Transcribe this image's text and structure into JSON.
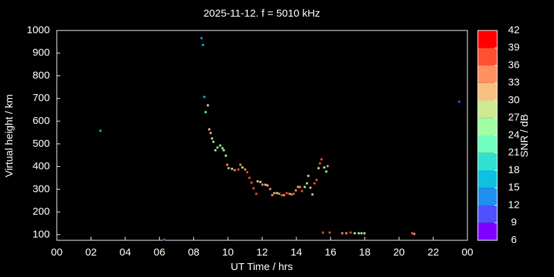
{
  "chart_data": {
    "type": "scatter",
    "title": "2025-11-12. f = 5010 kHz",
    "x_label": "UT Time / hrs",
    "y_label": "Virtual height / km",
    "xlim": [
      0,
      24
    ],
    "xticks": [
      {
        "value": 0,
        "label": "00"
      },
      {
        "value": 2,
        "label": "02"
      },
      {
        "value": 4,
        "label": "04"
      },
      {
        "value": 6,
        "label": "06"
      },
      {
        "value": 8,
        "label": "08"
      },
      10,
      12,
      14,
      16,
      18,
      20,
      22,
      {
        "value": 24,
        "label": "00"
      }
    ],
    "ylim": [
      75,
      1000
    ],
    "yticks": [
      100,
      200,
      300,
      400,
      500,
      600,
      700,
      800,
      900,
      1000
    ],
    "colorbar": {
      "label": "SNR / dB",
      "lim": [
        6,
        42
      ],
      "ticks": [
        6,
        9,
        12,
        15,
        18,
        21,
        24,
        27,
        30,
        33,
        36,
        39,
        42
      ],
      "colors": [
        "#8000ff",
        "#5050ff",
        "#2090f0",
        "#10c0e0",
        "#30e0d0",
        "#70ffc0",
        "#a0ffa0",
        "#d0e890",
        "#f8c080",
        "#ff9060",
        "#ff5030",
        "#ff0000"
      ]
    },
    "x": [
      6.28,
      8.46,
      8.54,
      8.62,
      8.83,
      8.7,
      8.91,
      8.99,
      9.07,
      9.15,
      9.27,
      9.39,
      9.55,
      9.68,
      9.76,
      9.88,
      9.96,
      10.04,
      10.24,
      10.4,
      10.61,
      10.73,
      10.85,
      11.01,
      11.13,
      11.26,
      11.38,
      11.5,
      11.66,
      11.74,
      11.9,
      12.02,
      12.19,
      12.31,
      12.47,
      12.59,
      12.71,
      12.87,
      13.0,
      13.16,
      13.28,
      13.44,
      13.6,
      13.72,
      13.85,
      13.97,
      14.09,
      14.21,
      14.33,
      14.49,
      14.62,
      14.7,
      14.82,
      14.94,
      15.06,
      15.18,
      15.3,
      15.38,
      15.47,
      15.63,
      15.75,
      15.83,
      15.55,
      15.95,
      16.68,
      16.92,
      17.17,
      17.41,
      17.65,
      17.81,
      17.98,
      20.77,
      20.89,
      2.55,
      23.52
    ],
    "y": [
      78,
      966,
      936,
      707,
      670,
      640,
      564,
      548,
      524,
      509,
      472,
      484,
      493,
      481,
      472,
      448,
      408,
      393,
      390,
      384,
      387,
      408,
      396,
      387,
      375,
      350,
      329,
      304,
      280,
      335,
      332,
      320,
      320,
      317,
      301,
      274,
      283,
      283,
      280,
      274,
      274,
      283,
      280,
      277,
      280,
      295,
      310,
      310,
      292,
      310,
      326,
      359,
      307,
      277,
      326,
      341,
      393,
      414,
      432,
      396,
      378,
      402,
      109,
      109,
      106,
      106,
      109,
      106,
      106,
      106,
      106,
      106,
      103,
      558,
      686
    ],
    "snr": [
      10,
      13,
      16,
      17,
      25,
      23,
      31,
      32,
      29,
      26,
      24,
      23,
      24,
      24,
      25,
      24,
      33,
      30,
      27,
      33,
      37,
      35,
      29,
      33,
      36,
      38,
      37,
      38,
      38,
      27,
      29,
      33,
      30,
      32,
      34,
      35,
      30,
      28,
      33,
      36,
      34,
      37,
      33,
      33,
      37,
      34,
      34,
      35,
      36,
      25,
      24,
      27,
      32,
      29,
      37,
      36,
      28,
      37,
      37,
      25,
      26,
      33,
      38,
      36,
      34,
      33,
      37,
      28,
      25,
      25,
      27,
      36,
      34,
      17,
      10
    ]
  }
}
